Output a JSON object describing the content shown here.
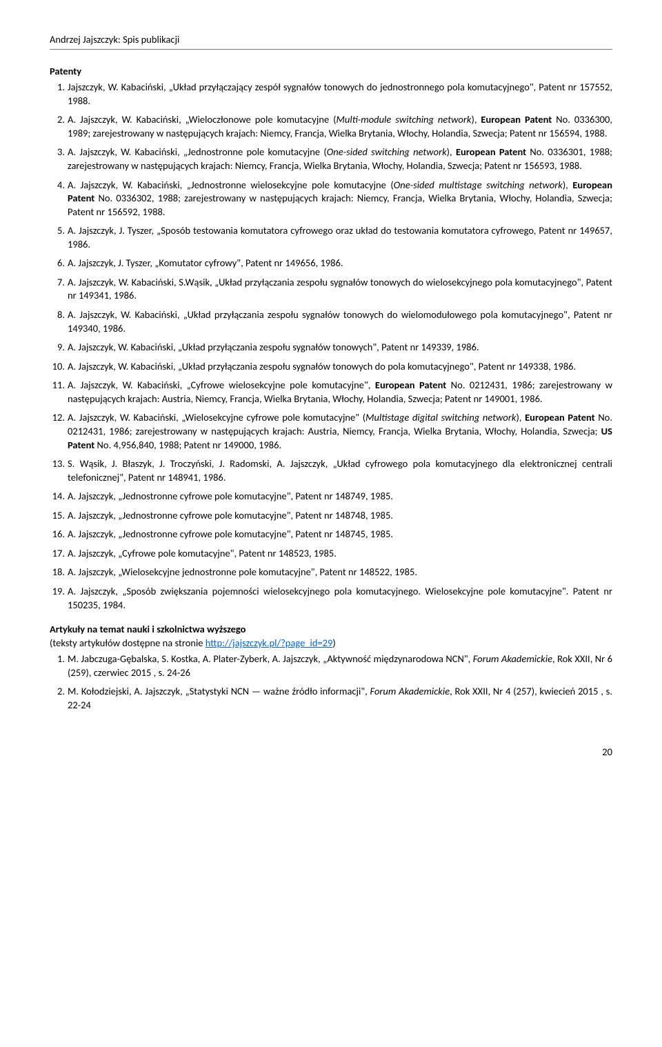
{
  "header": "Andrzej Jajszczyk: Spis publikacji",
  "section_patenty": "Patenty",
  "patents": [
    {
      "n": "1.",
      "html": "Jajszczyk, W. Kabaciński, „Układ przyłączający zespół sygnałów tonowych do jednostronnego pola komutacyjnego\", Patent nr 157552, 1988."
    },
    {
      "n": "2.",
      "html": "A. Jajszczyk, W. Kabaciński, „Wieloczłonowe pole komutacyjne (<em>Multi-module switching network</em>), <strong>European Patent</strong> No. 0336300, 1989; zarejestrowany w następujących krajach: Niemcy, Francja, Wielka Brytania, Włochy, Holandia, Szwecja; Patent nr 156594, 1988."
    },
    {
      "n": "3.",
      "html": "A. Jajszczyk, W. Kabaciński, „Jednostronne pole komutacyjne (<em>One-sided switching network</em>), <strong>European Patent</strong> No. 0336301, 1988; zarejestrowany w następujących krajach: Niemcy, Francja, Wielka Brytania, Włochy, Holandia, Szwecja; Patent nr 156593, 1988."
    },
    {
      "n": "4.",
      "html": "A. Jajszczyk, W. Kabaciński, „Jednostronne wielosekcyjne pole komutacyjne (<em>One-sided multistage switching network</em>), <strong>European Patent</strong> No. 0336302, 1988; zarejestrowany w następujących krajach: Niemcy, Francja, Wielka Brytania, Włochy, Holandia, Szwecja; Patent nr 156592, 1988."
    },
    {
      "n": "5.",
      "html": "A. Jajszczyk, J. Tyszer, „Sposób testowania komutatora cyfrowego oraz układ do testowania komutatora cyfrowego, Patent nr 149657, 1986."
    },
    {
      "n": "6.",
      "html": "A. Jajszczyk, J. Tyszer, „Komutator cyfrowy\", Patent nr 149656, 1986."
    },
    {
      "n": "7.",
      "html": "A. Jajszczyk, W. Kabaciński, S.Wąsik, „Układ przyłączania zespołu sygnałów tonowych do wielosekcyjnego pola komutacyjnego\", Patent nr 149341, 1986."
    },
    {
      "n": "8.",
      "html": "A. Jajszczyk, W. Kabaciński, „Układ przyłączania zespołu sygnałów tonowych do wielomodułowego pola komutacyjnego\", Patent nr 149340, 1986."
    },
    {
      "n": "9.",
      "html": "A. Jajszczyk, W. Kabaciński, „Układ przyłączania zespołu sygnałów tonowych\", Patent nr 149339, 1986."
    },
    {
      "n": "10.",
      "html": "A. Jajszczyk, W. Kabaciński, „Układ przyłączania zespołu sygnałów tonowych do pola komutacyjnego\", Patent nr 149338, 1986."
    },
    {
      "n": "11.",
      "html": "A. Jajszczyk, W. Kabaciński, „Cyfrowe wielosekcyjne pole komutacyjne\", <strong>European Patent</strong> No. 0212431, 1986; zarejestrowany w następujących krajach: Austria, Niemcy, Francja, Wielka Brytania, Włochy, Holandia, Szwecja; Patent nr 149001, 1986."
    },
    {
      "n": "12.",
      "html": "A. Jajszczyk, W. Kabaciński, „Wielosekcyjne cyfrowe pole komutacyjne\" (<em>Multistage digital switching network</em>), <strong>European Patent</strong> No. 0212431, 1986; zarejestrowany w następujących krajach: Austria, Niemcy, Francja, Wielka Brytania, Włochy, Holandia, Szwecja; <strong>US Patent</strong> No. 4,956,840, 1988; Patent nr 149000, 1986."
    },
    {
      "n": "13.",
      "html": "S. Wąsik, J. Błaszyk, J. Troczyński, J. Radomski, A. Jajszczyk, „Układ cyfrowego pola komutacyjnego dla elektronicznej centrali telefonicznej\", Patent nr 148941, 1986."
    },
    {
      "n": "14.",
      "html": "A. Jajszczyk, „Jednostronne cyfrowe pole komutacyjne\", Patent nr 148749, 1985."
    },
    {
      "n": "15.",
      "html": "A. Jajszczyk, „Jednostronne cyfrowe pole komutacyjne\", Patent nr 148748, 1985."
    },
    {
      "n": "16.",
      "html": "A. Jajszczyk, „Jednostronne cyfrowe pole komutacyjne\", Patent nr 148745, 1985."
    },
    {
      "n": "17.",
      "html": "A. Jajszczyk, „Cyfrowe pole komutacyjne\", Patent nr 148523, 1985."
    },
    {
      "n": "18.",
      "html": "A. Jajszczyk, „Wielosekcyjne jednostronne pole komutacyjne\", Patent nr 148522, 1985."
    },
    {
      "n": "19.",
      "html": "A. Jajszczyk, „Sposób zwiększania pojemności wielosekcyjnego pola komutacyjnego. Wielosekcyjne pole komutacyjne\". Patent nr 150235, 1984."
    }
  ],
  "section_articles": "Artykuły na temat nauki i szkolnictwa wyższego",
  "articles_note_prefix": "(teksty artykułów dostępne na stronie ",
  "articles_link_text": "http://jajszczyk.pl/?page_id=29",
  "articles_link_href": "http://jajszczyk.pl/?page_id=29",
  "articles_note_suffix": ")",
  "articles": [
    {
      "n": "1.",
      "html": "M. Jabczuga-Gębalska, S. Kostka, A. Plater-Zyberk, A. Jajszczyk, „Aktywność międzynarodowa NCN\", <em>Forum Akademickie</em>, Rok XXII, Nr 6 (259), czerwiec 2015 , s. 24-26"
    },
    {
      "n": "2.",
      "html": "M. Kołodziejski, A. Jajszczyk, „Statystyki NCN — ważne źródło informacji\", <em>Forum Akademickie</em>, Rok XXII, Nr 4 (257), kwiecień 2015 , s. 22-24"
    }
  ],
  "page_number": "20"
}
